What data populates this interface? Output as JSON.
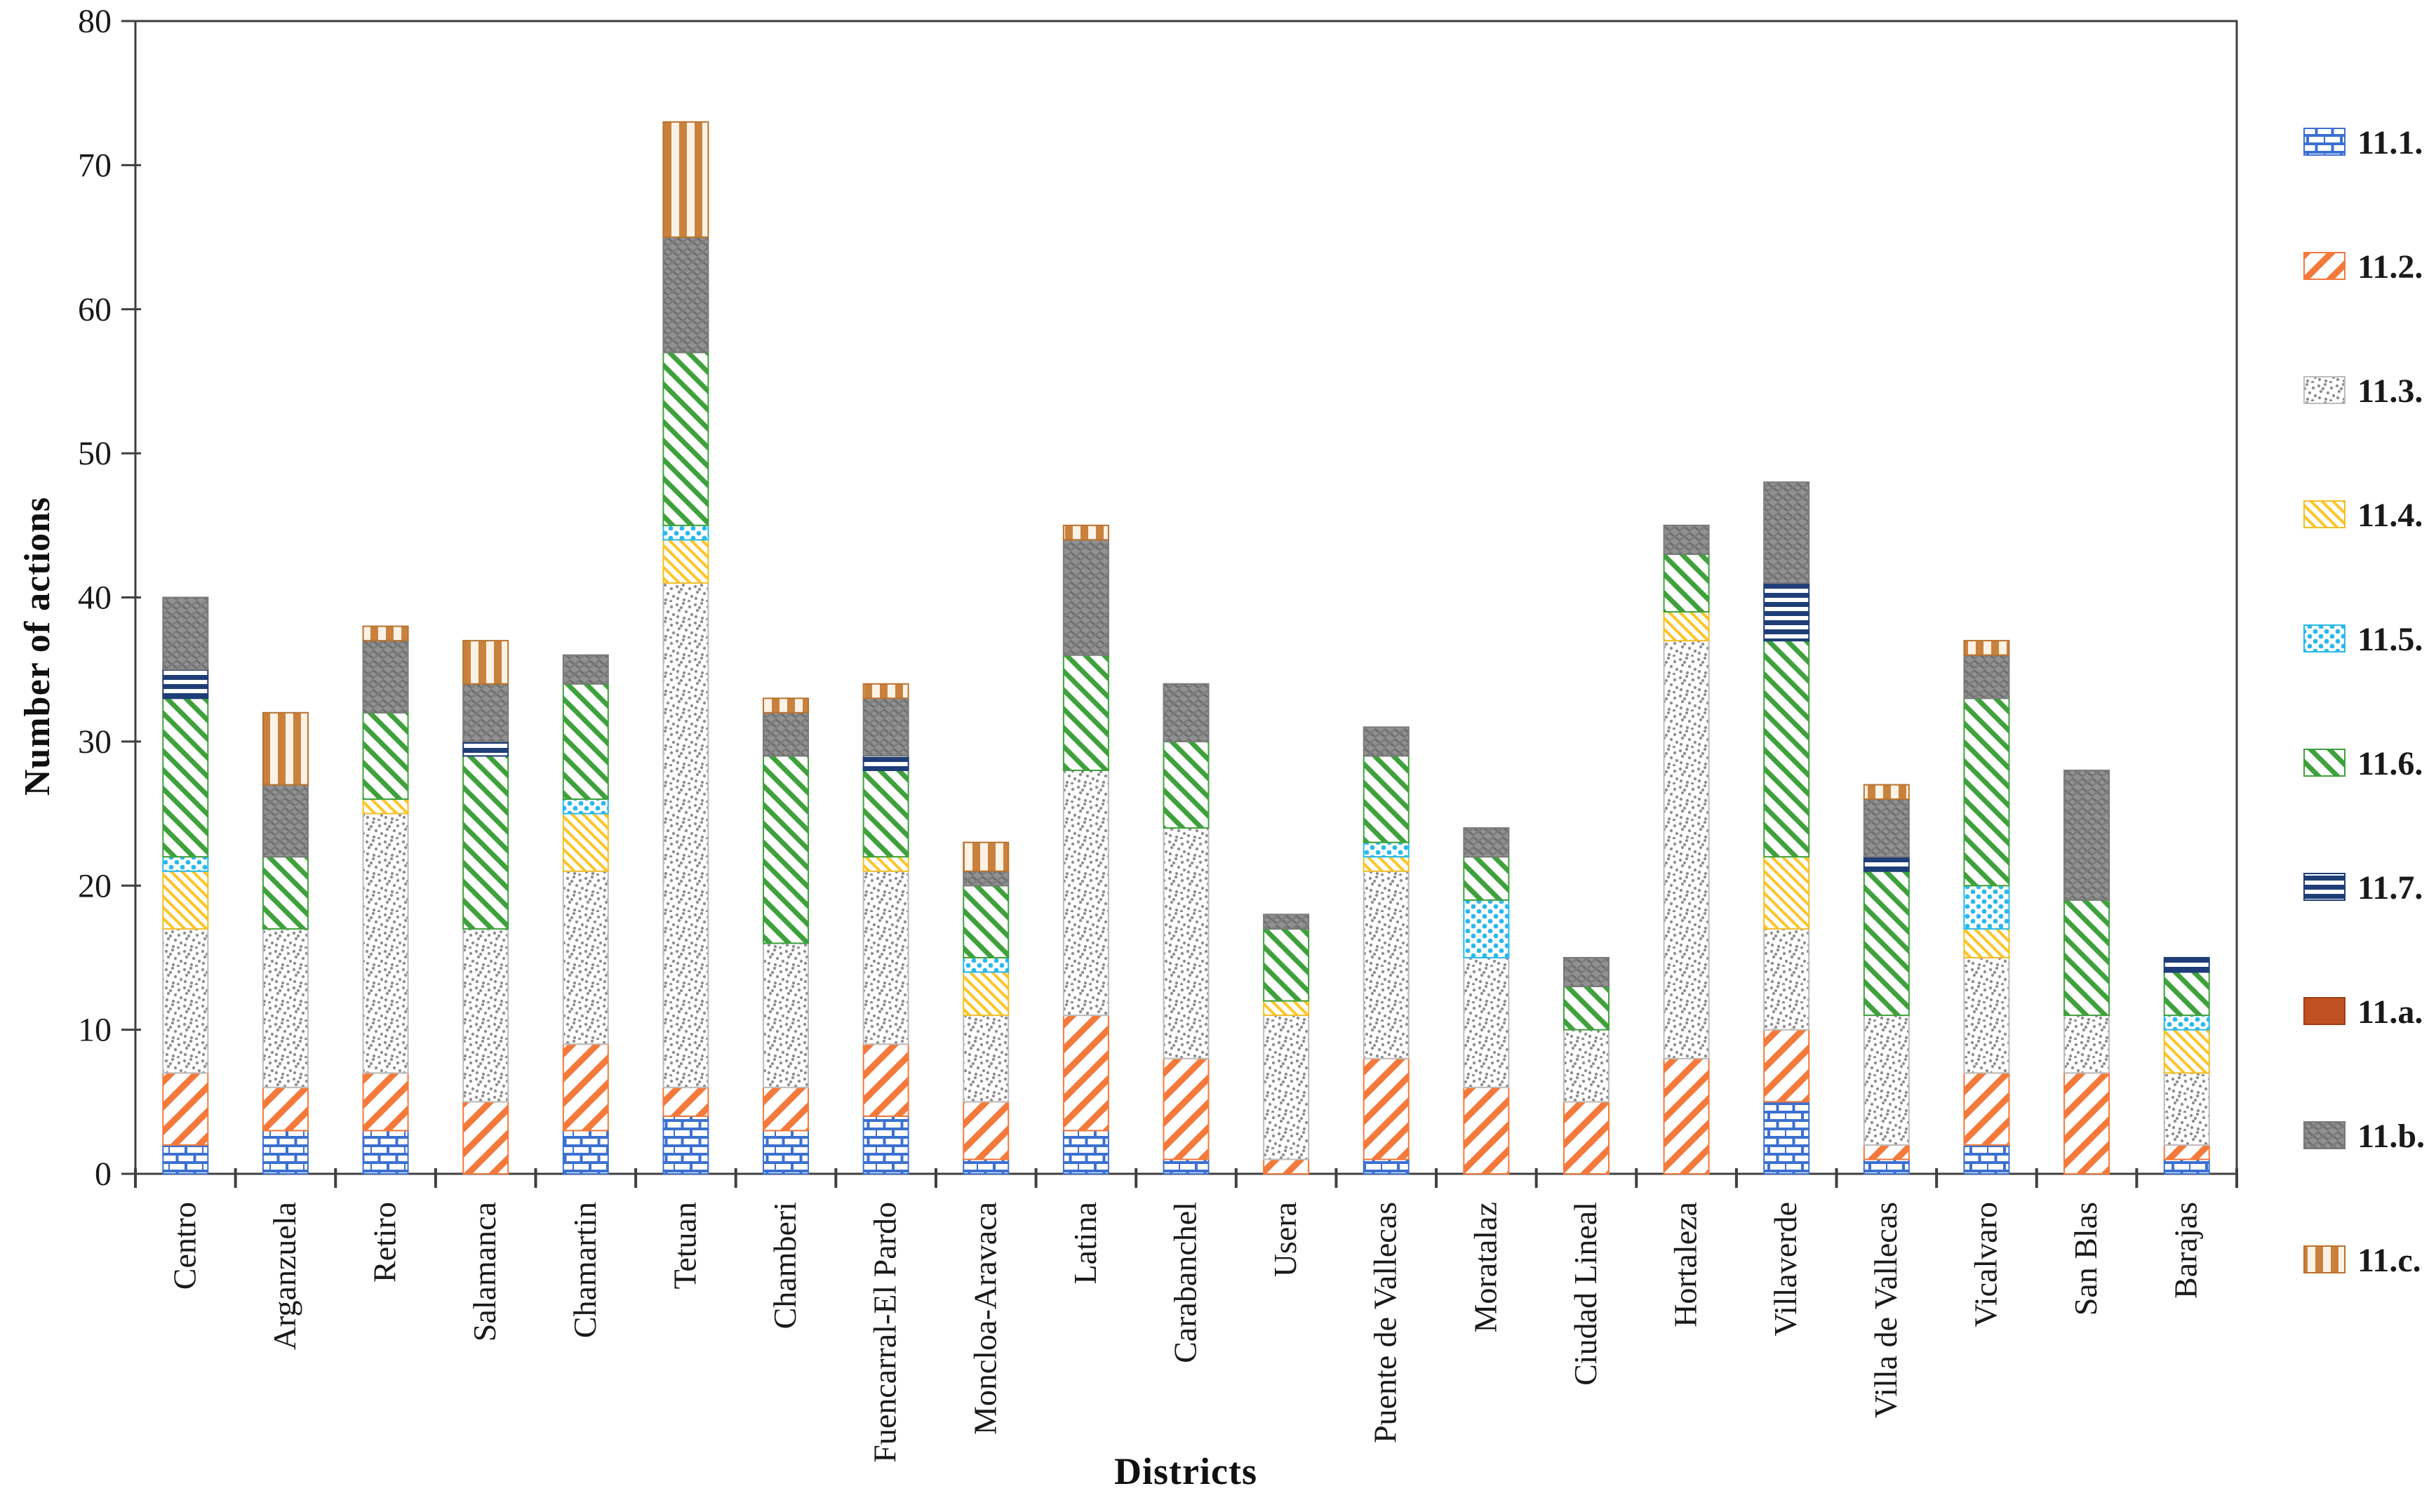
{
  "figure": {
    "background": "#ffffff",
    "axis_color": "#3f3f3f",
    "text_color": "#1a1a1a"
  },
  "chart_data": {
    "type": "bar",
    "stacked": true,
    "xlabel": "Districts",
    "ylabel": "Number of actions",
    "ylim": [
      0,
      80
    ],
    "yticks": [
      0,
      10,
      20,
      30,
      40,
      50,
      60,
      70,
      80
    ],
    "grid": false,
    "legend_position": "right",
    "categories": [
      "Centro",
      "Arganzuela",
      "Retiro",
      "Salamanca",
      "Chamartin",
      "Tetuan",
      "Chamberi",
      "Fuencarral-El Pardo",
      "Moncloa-Aravaca",
      "Latina",
      "Carabanchel",
      "Usera",
      "Puente de Vallecas",
      "Moratalaz",
      "Ciudad Lineal",
      "Hortaleza",
      "Villaverde",
      "Villa de Vallecas",
      "Vicalvaro",
      "San Blas",
      "Barajas"
    ],
    "series": [
      {
        "label": "11.1.",
        "pattern": "brick",
        "color": "#3c70d0",
        "background": "#ffffff",
        "border": "#3c70d0",
        "values": [
          2,
          3,
          3,
          0,
          3,
          4,
          3,
          4,
          1,
          3,
          1,
          0,
          1,
          0,
          0,
          0,
          5,
          1,
          2,
          0,
          1
        ]
      },
      {
        "label": "11.2.",
        "pattern": "diag-up",
        "color": "#f4793b",
        "background": "#ffffff",
        "border": "#f4793b",
        "values": [
          5,
          3,
          4,
          5,
          6,
          2,
          3,
          5,
          4,
          8,
          7,
          1,
          7,
          6,
          5,
          8,
          5,
          1,
          5,
          7,
          1
        ]
      },
      {
        "label": "11.3.",
        "pattern": "speckle",
        "color": "#8f8f8f",
        "background": "#ffffff",
        "border": "#bdbdbd",
        "values": [
          10,
          11,
          18,
          12,
          12,
          35,
          10,
          12,
          6,
          17,
          16,
          10,
          13,
          9,
          5,
          29,
          7,
          9,
          8,
          4,
          5
        ]
      },
      {
        "label": "11.4.",
        "pattern": "diag-down-thin",
        "color": "#ffc527",
        "background": "#ffffff",
        "border": "#f2be2a",
        "values": [
          4,
          0,
          1,
          0,
          4,
          3,
          0,
          1,
          3,
          0,
          0,
          1,
          1,
          0,
          0,
          2,
          5,
          0,
          2,
          0,
          3
        ]
      },
      {
        "label": "11.5.",
        "pattern": "dot-diamond",
        "color": "#29b9ec",
        "background": "#ffffff",
        "border": "#29b9ec",
        "values": [
          1,
          0,
          0,
          0,
          1,
          1,
          0,
          0,
          1,
          0,
          0,
          0,
          1,
          4,
          0,
          0,
          0,
          0,
          3,
          0,
          1
        ]
      },
      {
        "label": "11.6.",
        "pattern": "diag-down",
        "color": "#3fa13c",
        "background": "#ffffff",
        "border": "#3fa13c",
        "values": [
          11,
          5,
          6,
          12,
          8,
          12,
          13,
          6,
          5,
          8,
          6,
          5,
          6,
          3,
          3,
          4,
          15,
          10,
          13,
          8,
          3
        ]
      },
      {
        "label": "11.7.",
        "pattern": "hlines",
        "color": "#1f3e77",
        "background": "#ffffff",
        "border": "#1f3e77",
        "values": [
          2,
          0,
          0,
          1,
          0,
          0,
          0,
          1,
          0,
          0,
          0,
          0,
          0,
          0,
          0,
          0,
          4,
          1,
          0,
          0,
          1
        ]
      },
      {
        "label": "11.a.",
        "pattern": "solid",
        "color": "#c0501f",
        "background": "#c0501f",
        "border": "#9d4218",
        "values": [
          0,
          0,
          0,
          0,
          0,
          0,
          0,
          0,
          0,
          0,
          0,
          0,
          0,
          0,
          0,
          0,
          0,
          0,
          0,
          0,
          0
        ]
      },
      {
        "label": "11.b.",
        "pattern": "weave",
        "color": "#6e6e6e",
        "background": "#919191",
        "border": "#7a7a7a",
        "values": [
          5,
          5,
          5,
          4,
          2,
          8,
          3,
          4,
          1,
          8,
          4,
          1,
          2,
          2,
          2,
          2,
          7,
          4,
          3,
          9,
          0
        ]
      },
      {
        "label": "11.c.",
        "pattern": "vlines",
        "color": "#c9823e",
        "background": "#fbf2e6",
        "border": "#b9722e",
        "values": [
          0,
          5,
          1,
          3,
          0,
          8,
          1,
          1,
          2,
          1,
          0,
          0,
          0,
          0,
          0,
          0,
          0,
          1,
          1,
          0,
          0
        ]
      }
    ]
  }
}
